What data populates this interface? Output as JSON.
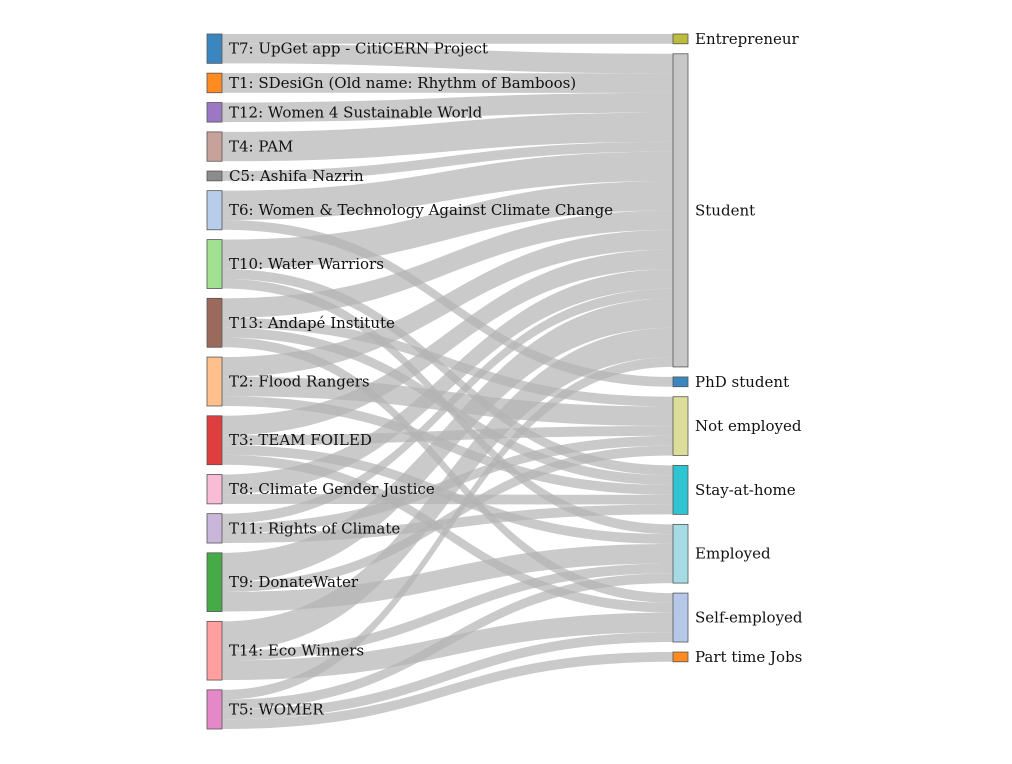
{
  "chart_data": {
    "type": "sankey",
    "title": "",
    "link_color": "#b4b4b4",
    "sources": [
      {
        "id": "T7",
        "label": "T7: UpGet app - CitiCERN Project",
        "color": "#3a87bf"
      },
      {
        "id": "T1",
        "label": "T1: SDesiGn (Old name: Rhythm of Bamboos)",
        "color": "#ff8b22"
      },
      {
        "id": "T12",
        "label": "T12: Women 4 Sustainable World",
        "color": "#9b77c4"
      },
      {
        "id": "T4",
        "label": "T4: PAM",
        "color": "#c6a29b"
      },
      {
        "id": "C5",
        "label": "C5: Ashifa Nazrin",
        "color": "#8c8c8c"
      },
      {
        "id": "T6",
        "label": "T6: Women & Technology Against Climate Change",
        "color": "#b8cde9"
      },
      {
        "id": "T10",
        "label": "T10: Water Warriors",
        "color": "#a2e092"
      },
      {
        "id": "T13",
        "label": "T13: Andapé Institute",
        "color": "#9a6a5c"
      },
      {
        "id": "T2",
        "label": "T2: Flood Rangers",
        "color": "#ffc08d"
      },
      {
        "id": "T3",
        "label": "T3: TEAM FOILED",
        "color": "#de3e3e"
      },
      {
        "id": "T8",
        "label": "T8: Climate Gender Justice",
        "color": "#f8bcd6"
      },
      {
        "id": "T11",
        "label": "T11: Rights of Climate",
        "color": "#cab6d8"
      },
      {
        "id": "T9",
        "label": "T9: DonateWater",
        "color": "#46aa46"
      },
      {
        "id": "T14",
        "label": "T14: Eco Winners",
        "color": "#ff9f9f"
      },
      {
        "id": "T5",
        "label": "T5: WOMER",
        "color": "#e588c8"
      }
    ],
    "targets": [
      {
        "id": "Entrepreneur",
        "label": "Entrepreneur",
        "color": "#bcbd3c"
      },
      {
        "id": "Student",
        "label": "Student",
        "color": "#c7c7c7"
      },
      {
        "id": "PhD",
        "label": "PhD student",
        "color": "#3a87bf"
      },
      {
        "id": "NotEmployed",
        "label": "Not employed",
        "color": "#dddd9a"
      },
      {
        "id": "StayHome",
        "label": "Stay-at-home",
        "color": "#2ec4d2"
      },
      {
        "id": "Employed",
        "label": "Employed",
        "color": "#a5dce4"
      },
      {
        "id": "SelfEmployed",
        "label": "Self-employed",
        "color": "#b6c8e8"
      },
      {
        "id": "PartTime",
        "label": "Part time Jobs",
        "color": "#ff8b22"
      }
    ],
    "flows": [
      {
        "source": "T7",
        "target": "Entrepreneur",
        "value": 1
      },
      {
        "source": "T7",
        "target": "Student",
        "value": 2
      },
      {
        "source": "T1",
        "target": "Student",
        "value": 2
      },
      {
        "source": "T12",
        "target": "Student",
        "value": 2
      },
      {
        "source": "T4",
        "target": "Student",
        "value": 3
      },
      {
        "source": "C5",
        "target": "Student",
        "value": 1
      },
      {
        "source": "T6",
        "target": "Student",
        "value": 3
      },
      {
        "source": "T6",
        "target": "PhD",
        "value": 1
      },
      {
        "source": "T10",
        "target": "Student",
        "value": 3
      },
      {
        "source": "T10",
        "target": "StayHome",
        "value": 1
      },
      {
        "source": "T10",
        "target": "Employed",
        "value": 1
      },
      {
        "source": "T13",
        "target": "Student",
        "value": 2
      },
      {
        "source": "T13",
        "target": "NotEmployed",
        "value": 1
      },
      {
        "source": "T13",
        "target": "StayHome",
        "value": 1
      },
      {
        "source": "T13",
        "target": "SelfEmployed",
        "value": 1
      },
      {
        "source": "T2",
        "target": "Student",
        "value": 2
      },
      {
        "source": "T2",
        "target": "NotEmployed",
        "value": 2
      },
      {
        "source": "T2",
        "target": "StayHome",
        "value": 1
      },
      {
        "source": "T3",
        "target": "Student",
        "value": 2
      },
      {
        "source": "T3",
        "target": "NotEmployed",
        "value": 1
      },
      {
        "source": "T3",
        "target": "Employed",
        "value": 1
      },
      {
        "source": "T3",
        "target": "SelfEmployed",
        "value": 1
      },
      {
        "source": "T8",
        "target": "Student",
        "value": 2
      },
      {
        "source": "T8",
        "target": "StayHome",
        "value": 1
      },
      {
        "source": "T11",
        "target": "NotEmployed",
        "value": 1
      },
      {
        "source": "T11",
        "target": "Student",
        "value": 1
      },
      {
        "source": "T11",
        "target": "StayHome",
        "value": 1
      },
      {
        "source": "T9",
        "target": "Student",
        "value": 3
      },
      {
        "source": "T9",
        "target": "NotEmployed",
        "value": 1
      },
      {
        "source": "T9",
        "target": "Employed",
        "value": 2
      },
      {
        "source": "T14",
        "target": "Student",
        "value": 3
      },
      {
        "source": "T14",
        "target": "Employed",
        "value": 1
      },
      {
        "source": "T14",
        "target": "SelfEmployed",
        "value": 2
      },
      {
        "source": "T5",
        "target": "Student",
        "value": 1
      },
      {
        "source": "T5",
        "target": "Employed",
        "value": 1
      },
      {
        "source": "T5",
        "target": "SelfEmployed",
        "value": 1
      },
      {
        "source": "T5",
        "target": "PartTime",
        "value": 1
      }
    ]
  }
}
